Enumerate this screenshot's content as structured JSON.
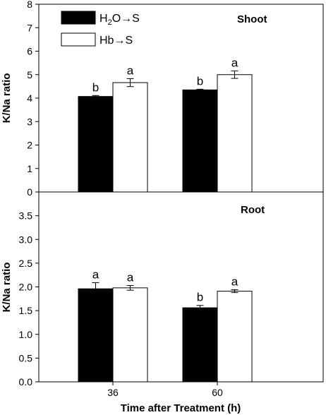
{
  "chart_data": [
    {
      "type": "bar",
      "title": "Shoot",
      "ylabel": "K/Na ratio",
      "xlabel": "",
      "ylim": [
        0,
        8
      ],
      "yticks": [
        "0",
        "1",
        "2",
        "3",
        "4",
        "5",
        "6",
        "7",
        "8"
      ],
      "categories": [
        "36",
        "60"
      ],
      "legend": {
        "placement": "top-left",
        "entries": [
          "H2O→S",
          "Hb→S"
        ]
      },
      "series": [
        {
          "name": "H2O→S",
          "color": "#000000",
          "values": [
            4.07,
            4.35
          ],
          "errors": [
            0.04,
            0.03
          ],
          "labels": [
            "b",
            "b"
          ]
        },
        {
          "name": "Hb→S",
          "color": "#ffffff",
          "values": [
            4.66,
            5.0
          ],
          "errors": [
            0.17,
            0.16
          ],
          "labels": [
            "a",
            "a"
          ]
        }
      ]
    },
    {
      "type": "bar",
      "title": "Root",
      "ylabel": "K/Na ratio",
      "xlabel": "Time after Treatment (h)",
      "ylim": [
        0,
        4
      ],
      "yticks": [
        "0.0",
        "0.5",
        "1.0",
        "1.5",
        "2.0",
        "2.5",
        "3.0",
        "3.5"
      ],
      "categories": [
        "36",
        "60"
      ],
      "series": [
        {
          "name": "H2O→S",
          "color": "#000000",
          "values": [
            1.96,
            1.56
          ],
          "errors": [
            0.13,
            0.05
          ],
          "labels": [
            "a",
            "b"
          ]
        },
        {
          "name": "Hb→S",
          "color": "#ffffff",
          "values": [
            1.98,
            1.91
          ],
          "errors": [
            0.05,
            0.03
          ],
          "labels": [
            "a",
            "a"
          ]
        }
      ]
    }
  ]
}
